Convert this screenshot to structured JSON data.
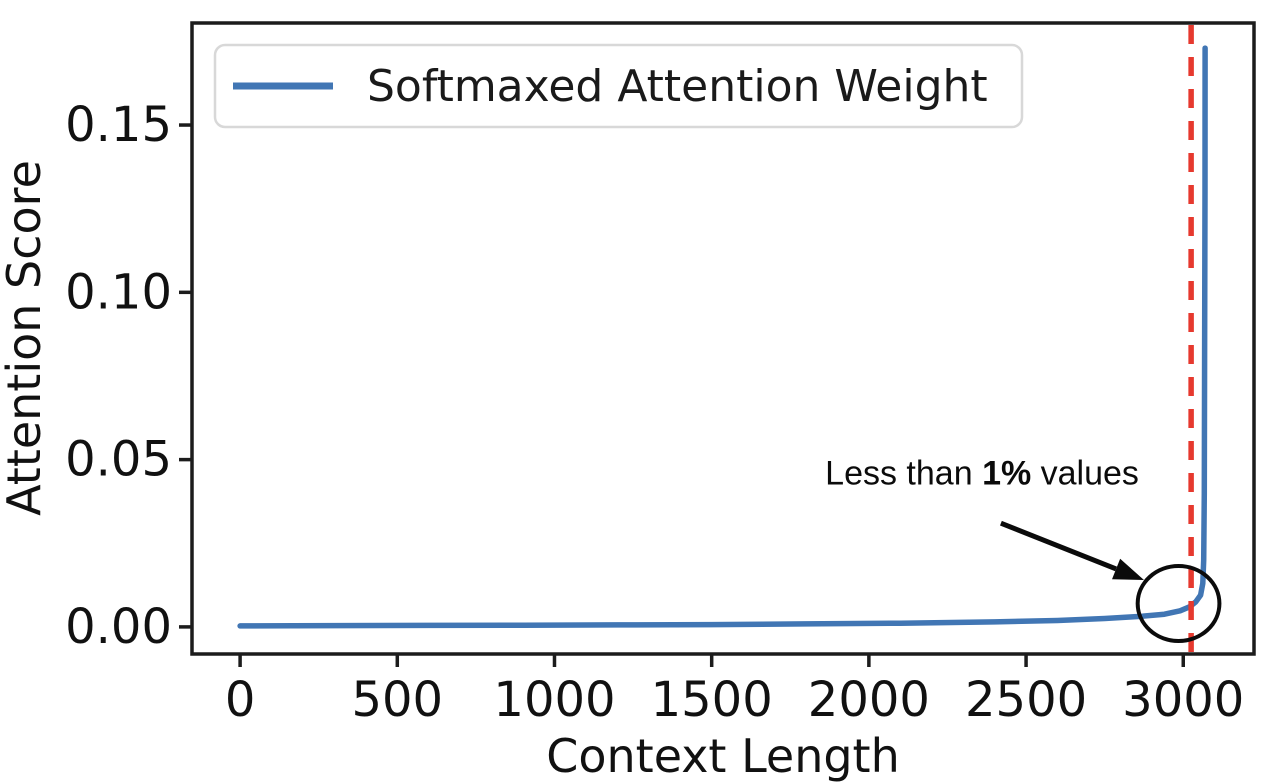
{
  "figure": {
    "background": "#ffffff",
    "axis_color": "#1c1c1c"
  },
  "chart_data": {
    "type": "line",
    "title": "",
    "xlabel": "Context Length",
    "ylabel": "Attention Score",
    "xlim": [
      -153,
      3225
    ],
    "ylim": [
      -0.0081,
      0.1805
    ],
    "grid": false,
    "x_ticks": {
      "values": [
        0,
        500,
        1000,
        1500,
        2000,
        2500,
        3000
      ],
      "labels": [
        "0",
        "500",
        "1000",
        "1500",
        "2000",
        "2500",
        "3000"
      ]
    },
    "y_ticks": {
      "values": [
        0.0,
        0.05,
        0.1,
        0.15
      ],
      "labels": [
        "0.00",
        "0.05",
        "0.10",
        "0.15"
      ]
    },
    "series": [
      {
        "name": "Softmaxed Attention Weight",
        "color": "#4176b4",
        "line_width": 5.5,
        "points": [
          [
            0,
            0.0003
          ],
          [
            300,
            0.0004
          ],
          [
            600,
            0.00045
          ],
          [
            900,
            0.0005
          ],
          [
            1200,
            0.0006
          ],
          [
            1500,
            0.0007
          ],
          [
            1800,
            0.0009
          ],
          [
            2100,
            0.0011
          ],
          [
            2400,
            0.0015
          ],
          [
            2600,
            0.0019
          ],
          [
            2750,
            0.0025
          ],
          [
            2870,
            0.0032
          ],
          [
            2940,
            0.0038
          ],
          [
            2990,
            0.0048
          ],
          [
            3020,
            0.006
          ],
          [
            3040,
            0.0075
          ],
          [
            3055,
            0.0095
          ],
          [
            3062,
            0.013
          ],
          [
            3065,
            0.02
          ],
          [
            3067,
            0.04
          ],
          [
            3068,
            0.08
          ],
          [
            3069,
            0.13
          ],
          [
            3069.5,
            0.173
          ]
        ]
      }
    ],
    "legend": {
      "label": "Softmaxed Attention Weight",
      "position": "upper left",
      "swatch_color": "#4176b4"
    },
    "vline": {
      "x": 3025,
      "color": "#e6392e",
      "style": "dashed"
    },
    "annotation": {
      "parts": [
        {
          "text": "Less than ",
          "bold": false
        },
        {
          "text": "1%",
          "bold": true
        },
        {
          "text": " values",
          "bold": false
        }
      ],
      "full_text": "Less than 1% values",
      "text_pos": {
        "x": 2360,
        "y": 0.0425
      },
      "arrow": {
        "from": {
          "x": 2420,
          "y": 0.031
        },
        "to": {
          "x": 2875,
          "y": 0.014
        }
      },
      "circle": {
        "cx": 2985,
        "cy": 0.007,
        "rx_units": 130,
        "ry_units": 0.0112
      },
      "color": "#0b0b0b"
    }
  }
}
